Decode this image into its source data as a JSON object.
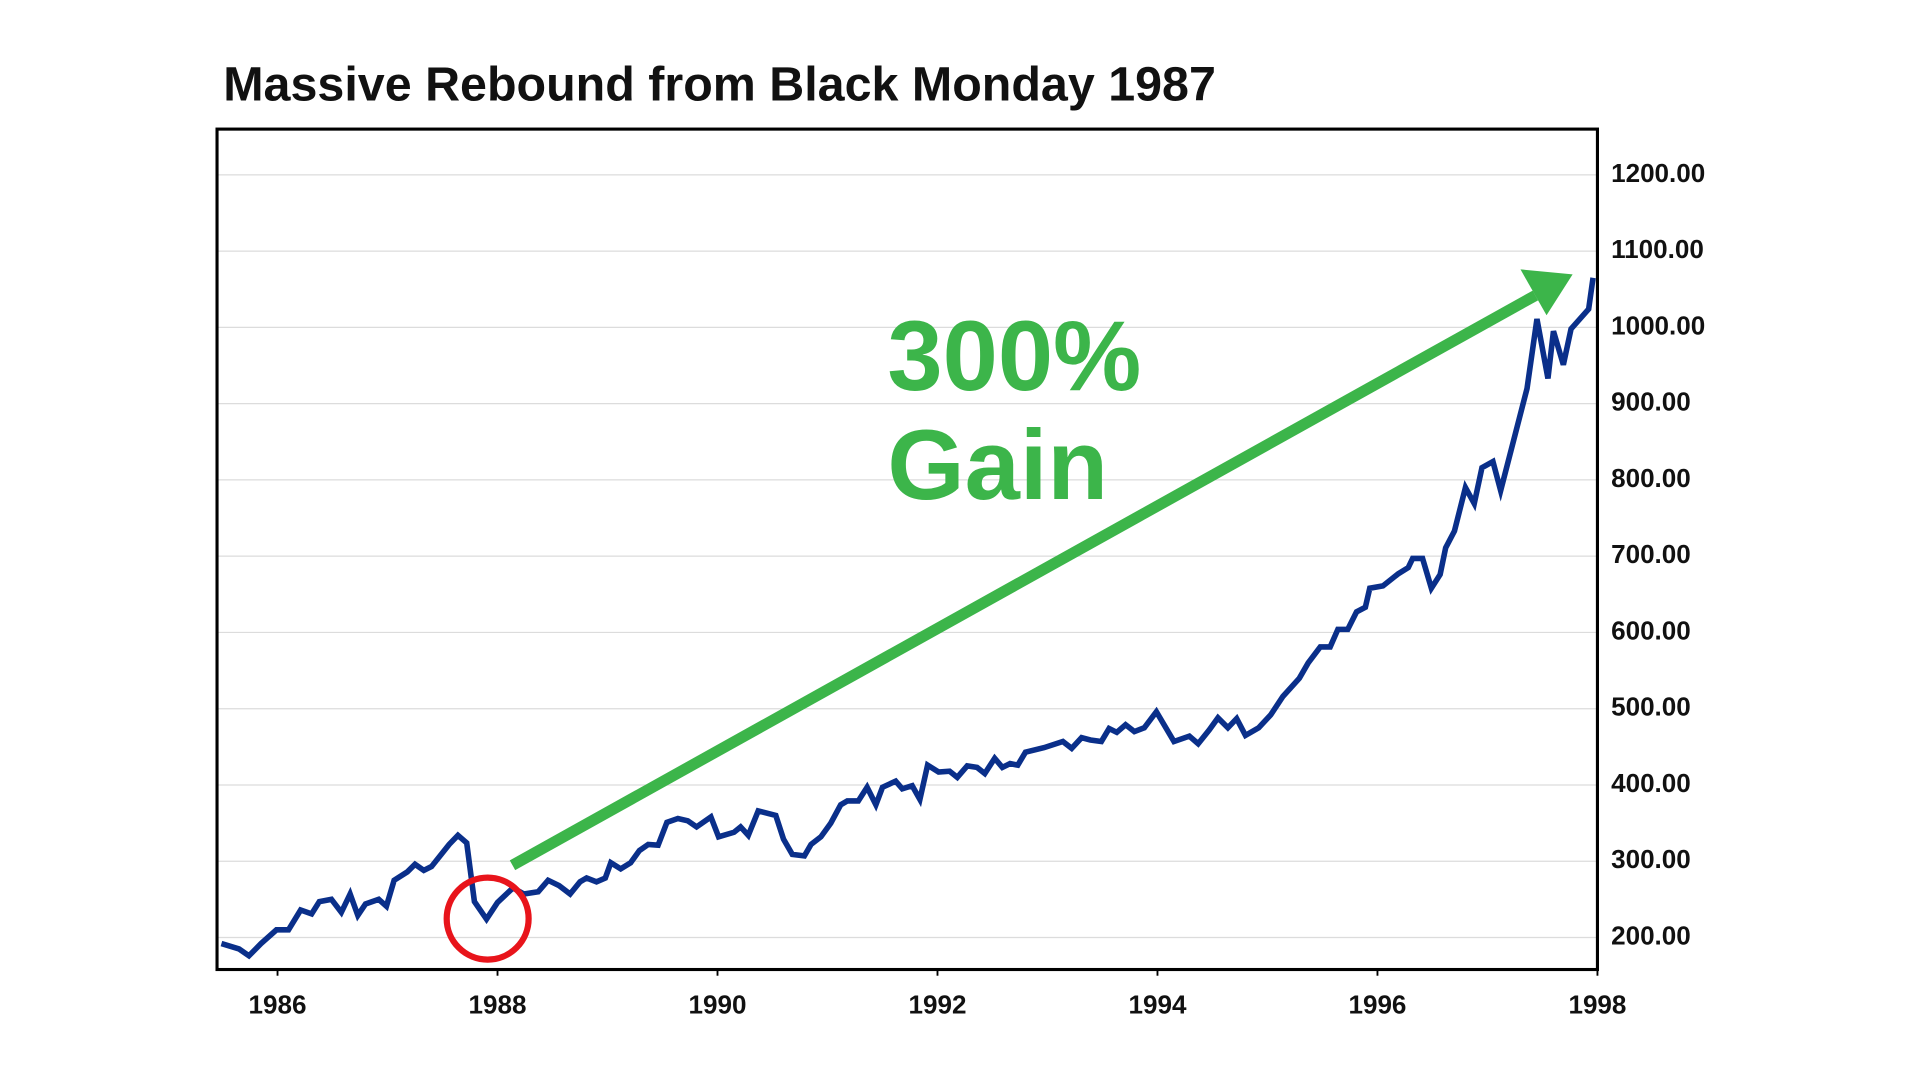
{
  "chart_data": {
    "type": "line",
    "title": "Massive Rebound from Black Monday 1987",
    "annotations": [
      "300%",
      "Gain"
    ],
    "xlim": [
      1985.45,
      1998
    ],
    "xticks": [
      1986,
      1988,
      1990,
      1992,
      1994,
      1996,
      1998
    ],
    "ylim": [
      158,
      1260
    ],
    "yticks": [
      {
        "value": 200,
        "label": "200.00"
      },
      {
        "value": 300,
        "label": "300.00"
      },
      {
        "value": 400,
        "label": "400.00"
      },
      {
        "value": 500,
        "label": "500.00"
      },
      {
        "value": 600,
        "label": "600.00"
      },
      {
        "value": 700,
        "label": "700.00"
      },
      {
        "value": 800,
        "label": "800.00"
      },
      {
        "value": 900,
        "label": "900.00"
      },
      {
        "value": 1000,
        "label": "1000.00"
      },
      {
        "value": 1100,
        "label": "1100.00"
      },
      {
        "value": 1200,
        "label": "1200.00"
      }
    ],
    "grid": true,
    "x": [
      1985.49,
      1985.65,
      1985.74,
      1985.85,
      1985.99,
      1986.1,
      1986.21,
      1986.31,
      1986.38,
      1986.49,
      1986.58,
      1986.66,
      1986.73,
      1986.8,
      1986.92,
      1986.99,
      1987.06,
      1987.18,
      1987.25,
      1987.33,
      1987.4,
      1987.56,
      1987.64,
      1987.72,
      1987.79,
      1987.9,
      1988.0,
      1988.14,
      1988.24,
      1988.37,
      1988.46,
      1988.56,
      1988.66,
      1988.75,
      1988.81,
      1988.9,
      1988.98,
      1989.03,
      1989.12,
      1989.21,
      1989.29,
      1989.37,
      1989.46,
      1989.54,
      1989.64,
      1989.73,
      1989.81,
      1989.94,
      1990.01,
      1990.15,
      1990.21,
      1990.28,
      1990.37,
      1990.53,
      1990.6,
      1990.68,
      1990.79,
      1990.85,
      1990.94,
      1991.03,
      1991.12,
      1991.18,
      1991.28,
      1991.36,
      1991.44,
      1991.5,
      1991.62,
      1991.68,
      1991.77,
      1991.84,
      1991.91,
      1992.01,
      1992.11,
      1992.18,
      1992.27,
      1992.36,
      1992.43,
      1992.52,
      1992.59,
      1992.66,
      1992.73,
      1992.8,
      1992.97,
      1993.14,
      1993.22,
      1993.31,
      1993.39,
      1993.49,
      1993.56,
      1993.63,
      1993.71,
      1993.79,
      1993.88,
      1993.99,
      1994.15,
      1994.29,
      1994.37,
      1994.47,
      1994.55,
      1994.64,
      1994.72,
      1994.8,
      1994.92,
      1995.03,
      1995.14,
      1995.29,
      1995.37,
      1995.48,
      1995.57,
      1995.64,
      1995.73,
      1995.81,
      1995.89,
      1995.93,
      1996.05,
      1996.19,
      1996.28,
      1996.32,
      1996.41,
      1996.49,
      1996.57,
      1996.62,
      1996.7,
      1996.8,
      1996.88,
      1996.95,
      1997.05,
      1997.12,
      1997.36,
      1997.45,
      1997.55,
      1997.6,
      1997.69,
      1997.76,
      1997.92,
      1997.96
    ],
    "series": [
      {
        "color": "#0a2f8a",
        "values": [
          192,
          185,
          176,
          192,
          210,
          210,
          236,
          231,
          247,
          250,
          233,
          257,
          229,
          244,
          250,
          241,
          275,
          286,
          296,
          288,
          293,
          322,
          334,
          324,
          247,
          224,
          246,
          265,
          257,
          260,
          275,
          268,
          257,
          273,
          278,
          273,
          278,
          298,
          290,
          298,
          314,
          322,
          321,
          351,
          356,
          353,
          345,
          358,
          332,
          338,
          345,
          334,
          366,
          360,
          329,
          309,
          307,
          322,
          332,
          350,
          374,
          379,
          379,
          397,
          374,
          397,
          405,
          395,
          399,
          381,
          426,
          417,
          418,
          410,
          425,
          423,
          415,
          435,
          423,
          428,
          426,
          443,
          449,
          457,
          448,
          462,
          459,
          457,
          474,
          469,
          479,
          470,
          475,
          496,
          457,
          464,
          454,
          472,
          488,
          475,
          487,
          465,
          475,
          492,
          516,
          540,
          560,
          581,
          581,
          604,
          604,
          627,
          633,
          658,
          661,
          677,
          685,
          697,
          697,
          658,
          676,
          711,
          733,
          790,
          769,
          816,
          824,
          786,
          920,
          1011,
          933,
          995,
          951,
          998,
          1024,
          1065
        ]
      }
    ]
  }
}
